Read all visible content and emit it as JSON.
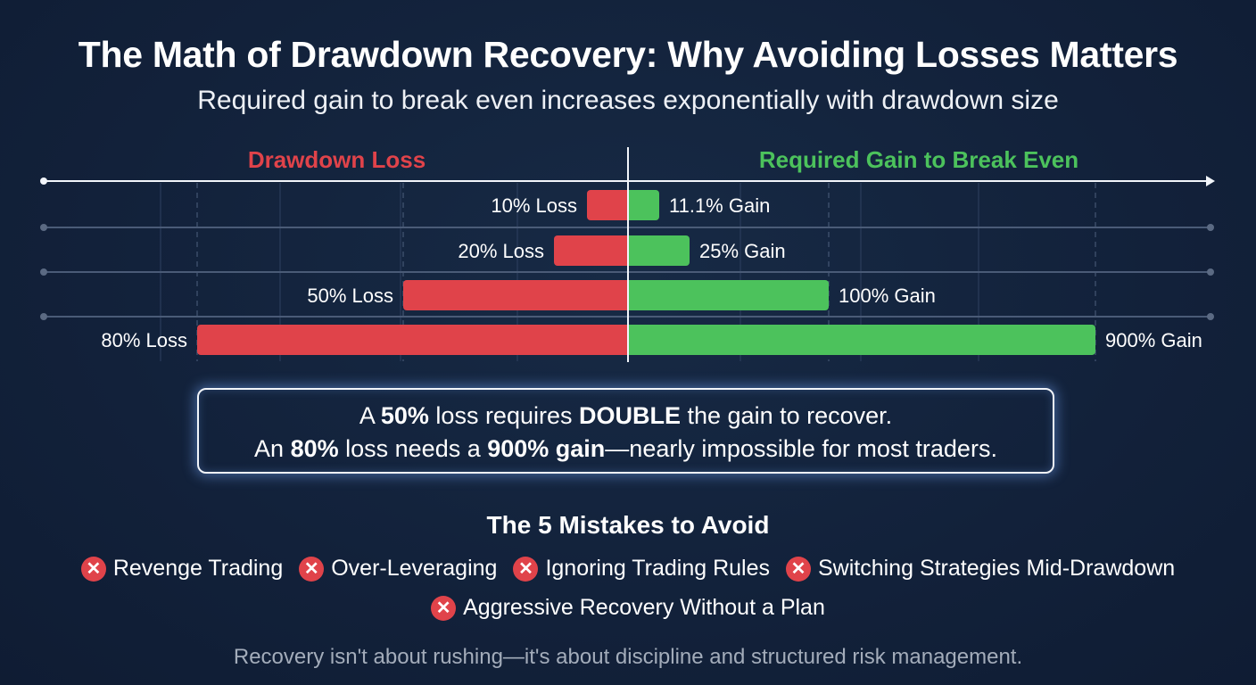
{
  "title": "The Math of Drawdown Recovery: Why Avoiding Losses Matters",
  "subtitle": "Required gain to break even increases exponentially with drawdown size",
  "colors": {
    "background": "#13223a",
    "loss": "#e0434a",
    "gain": "#4cc25c",
    "text": "#ffffff",
    "muted": "#a3acba"
  },
  "chart_data": {
    "type": "bar",
    "orientation": "horizontal-diverging",
    "scale": "non-linear (illustrative)",
    "left_label": "Drawdown Loss",
    "right_label": "Required Gain to Break Even",
    "rows": [
      {
        "loss": 10,
        "gain": 11.1,
        "loss_label": "10% Loss",
        "gain_label": "11.1% Gain"
      },
      {
        "loss": 20,
        "gain": 25,
        "loss_label": "20% Loss",
        "gain_label": "25% Gain"
      },
      {
        "loss": 50,
        "gain": 100,
        "loss_label": "50% Loss",
        "gain_label": "100% Gain"
      },
      {
        "loss": 80,
        "gain": 900,
        "loss_label": "80% Loss",
        "gain_label": "900% Gain"
      }
    ]
  },
  "callout": {
    "line1": {
      "a": "A ",
      "b": "50%",
      "c": " loss requires ",
      "d": "DOUBLE",
      "e": " the gain to recover."
    },
    "line2": {
      "a": "An ",
      "b": "80%",
      "c": " loss needs a ",
      "d": "900% gain",
      "e": "—nearly impossible for most traders."
    }
  },
  "mistakes": {
    "title": "The 5 Mistakes to Avoid",
    "icon": "x-circle-icon",
    "items": [
      "Revenge Trading",
      "Over-Leveraging",
      "Ignoring Trading Rules",
      "Switching Strategies Mid-Drawdown",
      "Aggressive Recovery Without a Plan"
    ]
  },
  "footer": "Recovery isn't about rushing—it's about discipline and structured risk management."
}
